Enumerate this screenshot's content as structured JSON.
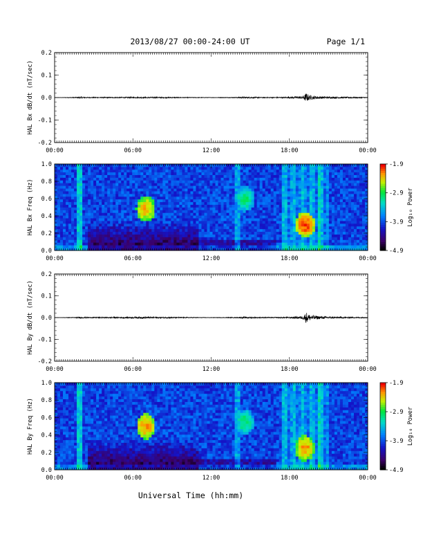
{
  "header": {
    "title": "2013/08/27  00:00-24:00 UT",
    "page": "Page 1/1"
  },
  "xlabel": "Universal Time (hh:mm)",
  "chart_data": [
    {
      "type": "line",
      "ylabel": "HAL Bx dB/dt (nT/sec)",
      "xlim": [
        0,
        24
      ],
      "ylim": [
        -0.2,
        0.2
      ],
      "ytick_labels": [
        "0.2",
        "0.1",
        "0.0",
        "-0.1",
        "-0.2"
      ],
      "xtick_labels": [
        "00:00",
        "06:00",
        "12:00",
        "18:00",
        "00:00"
      ],
      "series": [
        {
          "x": [
            0,
            1.5,
            2.0,
            2.5,
            6.8,
            7.2,
            12.0,
            14.0,
            14.5,
            16.0,
            18.0,
            19.0,
            19.3,
            19.5,
            19.8,
            20.5,
            21.5,
            24.0
          ],
          "y": [
            0.0,
            0.002,
            0.004,
            0.002,
            0.003,
            0.003,
            0.001,
            0.002,
            0.004,
            0.002,
            0.003,
            0.006,
            0.02,
            0.012,
            0.008,
            0.005,
            0.004,
            0.002
          ]
        }
      ]
    },
    {
      "type": "heatmap",
      "ylabel": "HAL Bx Freq (Hz)",
      "xlim": [
        0,
        24
      ],
      "ylim": [
        0,
        1.0
      ],
      "ytick_labels": [
        "1.0",
        "0.8",
        "0.6",
        "0.4",
        "0.2",
        "0.0"
      ],
      "xtick_labels": [
        "00:00",
        "06:00",
        "12:00",
        "18:00",
        "00:00"
      ],
      "colorbar": {
        "label": "Log₁₀ Power",
        "ticks": [
          "-1.9",
          "-2.9",
          "-3.9",
          "-4.9"
        ],
        "range": [
          -4.9,
          -1.9
        ]
      },
      "features": [
        {
          "t": 7.0,
          "f": 0.48,
          "value": -2.3
        },
        {
          "t": 14.6,
          "f": 0.6,
          "value": -3.0
        },
        {
          "t": 19.2,
          "f": 0.3,
          "value": -2.0
        }
      ]
    },
    {
      "type": "line",
      "ylabel": "HAL By dB/dt (nT/sec)",
      "xlim": [
        0,
        24
      ],
      "ylim": [
        -0.2,
        0.2
      ],
      "ytick_labels": [
        "0.2",
        "0.1",
        "0.0",
        "-0.1",
        "-0.2"
      ],
      "xtick_labels": [
        "00:00",
        "06:00",
        "12:00",
        "18:00",
        "00:00"
      ],
      "series": [
        {
          "x": [
            0,
            1.5,
            2.0,
            2.5,
            6.8,
            7.2,
            12.0,
            14.0,
            14.5,
            16.0,
            18.0,
            19.0,
            19.3,
            19.5,
            19.8,
            20.5,
            21.5,
            24.0
          ],
          "y": [
            0.0,
            0.002,
            0.004,
            0.002,
            0.004,
            0.004,
            0.001,
            0.002,
            0.004,
            0.002,
            0.003,
            0.007,
            0.025,
            0.015,
            0.01,
            0.006,
            0.004,
            0.002
          ]
        }
      ]
    },
    {
      "type": "heatmap",
      "ylabel": "HAL By Freq (Hz)",
      "xlim": [
        0,
        24
      ],
      "ylim": [
        0,
        1.0
      ],
      "ytick_labels": [
        "1.0",
        "0.8",
        "0.6",
        "0.4",
        "0.2",
        "0.0"
      ],
      "xtick_labels": [
        "00:00",
        "06:00",
        "12:00",
        "18:00",
        "00:00"
      ],
      "colorbar": {
        "label": "Log₁₀ Power",
        "ticks": [
          "-1.9",
          "-2.9",
          "-3.9",
          "-4.9"
        ],
        "range": [
          -4.9,
          -1.9
        ]
      },
      "features": [
        {
          "t": 7.0,
          "f": 0.5,
          "value": -2.2
        },
        {
          "t": 14.6,
          "f": 0.55,
          "value": -3.0
        },
        {
          "t": 19.2,
          "f": 0.25,
          "value": -2.2
        }
      ]
    }
  ]
}
